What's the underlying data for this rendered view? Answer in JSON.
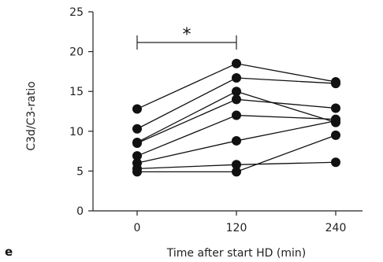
{
  "panel_label": "e",
  "significance": "*",
  "chart_data": {
    "type": "line",
    "xlabel": "Time after start HD (min)",
    "ylabel": "C3d/C3-ratio",
    "x": [
      0,
      120,
      240
    ],
    "x_ticks": [
      "0",
      "120",
      "240"
    ],
    "y_ticks": [
      "0",
      "5",
      "10",
      "15",
      "20",
      "25"
    ],
    "ylim": [
      0,
      25
    ],
    "grid": false,
    "marker_color": "#111111",
    "significance_bracket": {
      "from": 0,
      "to": 120,
      "label": "*"
    },
    "series": [
      {
        "values": [
          12.8,
          18.5,
          16.2
        ]
      },
      {
        "values": [
          10.3,
          16.7,
          16.0
        ]
      },
      {
        "values": [
          8.6,
          15.0,
          11.1
        ]
      },
      {
        "values": [
          8.5,
          14.0,
          12.9
        ]
      },
      {
        "values": [
          6.9,
          12.0,
          11.5
        ]
      },
      {
        "values": [
          6.0,
          8.8,
          11.3
        ]
      },
      {
        "values": [
          5.3,
          5.8,
          6.1
        ]
      },
      {
        "values": [
          4.9,
          4.9,
          9.5
        ]
      }
    ]
  }
}
